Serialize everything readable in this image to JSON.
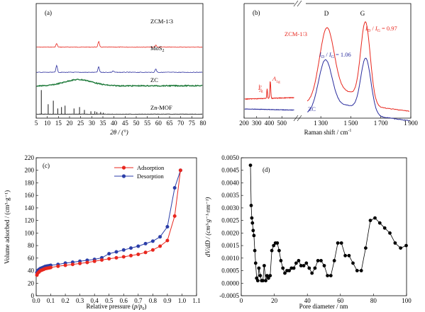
{
  "chart_data": [
    {
      "panel": "(a)",
      "type": "line",
      "xlabel": "2θ / (°)",
      "ylabel": "",
      "xlim": [
        5,
        80
      ],
      "xticks": [
        5,
        10,
        15,
        20,
        25,
        30,
        35,
        40,
        45,
        50,
        55,
        60,
        65,
        70,
        75,
        80
      ],
      "series": [
        {
          "name": "ZCM-1∶3",
          "color": "#e8271e",
          "peaks": [
            {
              "x": 14.2,
              "h": 5
            },
            {
              "x": 33.1,
              "h": 8
            },
            {
              "x": 58.8,
              "h": 3
            }
          ],
          "base": 0.38,
          "slope": 0.0,
          "noise": 0.8
        },
        {
          "name": "MoS",
          "sub": "2",
          "color": "#2b2e9e",
          "peaks": [
            {
              "x": 14.2,
              "h": 10
            },
            {
              "x": 33.1,
              "h": 8
            },
            {
              "x": 39.6,
              "h": 2
            },
            {
              "x": 58.8,
              "h": 5
            }
          ],
          "base": 0.6,
          "slope": 0.0,
          "noise": 0.8
        },
        {
          "name": "ZC",
          "color": "#1e7a3a",
          "broad": {
            "x": 24,
            "w": 9,
            "h": 9
          },
          "base": 0.72,
          "slope": 0.07,
          "noise": 1.4
        },
        {
          "name": "Zn-MOF",
          "color": "#000000",
          "sticks": [
            {
              "x": 7.3,
              "h": 34
            },
            {
              "x": 10.4,
              "h": 14
            },
            {
              "x": 12.7,
              "h": 19
            },
            {
              "x": 14.7,
              "h": 8
            },
            {
              "x": 16.4,
              "h": 10
            },
            {
              "x": 18.0,
              "h": 12
            },
            {
              "x": 22.0,
              "h": 8
            },
            {
              "x": 24.5,
              "h": 10
            },
            {
              "x": 26.7,
              "h": 6
            },
            {
              "x": 29.6,
              "h": 4
            },
            {
              "x": 31.4,
              "h": 4
            },
            {
              "x": 32.3,
              "h": 3
            },
            {
              "x": 34.0,
              "h": 3
            },
            {
              "x": 35.2,
              "h": 2
            }
          ],
          "base": 0.965,
          "slope": 0.0,
          "noise": 0.3
        }
      ]
    },
    {
      "panel": "(b)",
      "type": "line",
      "xlabel": "Raman shift / cm",
      "xlabel_sup": "-1",
      "xticks_left": [
        200,
        300,
        400,
        500
      ],
      "xticks_right": [
        1300,
        1500,
        1700,
        1900
      ],
      "xlim_left": [
        200,
        600
      ],
      "xlim_right": [
        1200,
        1900
      ],
      "peak_labels": [
        "D",
        "G"
      ],
      "series": [
        {
          "name": "ZCM-1∶3",
          "color": "#e8271e",
          "ratio_text": "= 0.97"
        },
        {
          "name": "ZC",
          "color": "#2b2e9e",
          "ratio_text": "= 1.06"
        }
      ],
      "mode_labels": [
        {
          "main": "E",
          "sub": "2g",
          "sup": "1"
        },
        {
          "main": "A",
          "sub": "1g",
          "sup": ""
        }
      ],
      "ratio_label": {
        "i": "I",
        "d": "D",
        "slash": " / ",
        "g": "G"
      }
    },
    {
      "panel": "(c)",
      "type": "line",
      "xlabel": "Relative pressure (",
      "xlabel_var": "p/p",
      "xlabel_sub": "0",
      "xlabel_end": ")",
      "ylabel": "Volume adsorbed / (cm³·g⁻¹)",
      "xlim": [
        0,
        1.1
      ],
      "ylim": [
        0,
        220
      ],
      "xticks": [
        0.0,
        0.1,
        0.2,
        0.3,
        0.4,
        0.5,
        0.6,
        0.7,
        0.8,
        0.9,
        1.0,
        1.1
      ],
      "yticks": [
        0,
        20,
        40,
        60,
        80,
        100,
        120,
        140,
        160,
        180,
        200,
        220
      ],
      "legend": "top-right",
      "series": [
        {
          "name": "Adsorption",
          "color": "#e8271e",
          "x": [
            0.005,
            0.01,
            0.02,
            0.03,
            0.04,
            0.05,
            0.06,
            0.07,
            0.08,
            0.09,
            0.1,
            0.15,
            0.2,
            0.25,
            0.3,
            0.35,
            0.4,
            0.45,
            0.5,
            0.55,
            0.6,
            0.65,
            0.7,
            0.75,
            0.8,
            0.85,
            0.9,
            0.95,
            0.99
          ],
          "y": [
            33,
            36,
            38,
            40,
            41,
            42,
            43,
            43.5,
            44,
            44.5,
            45,
            47,
            48.5,
            50,
            51.5,
            53,
            55,
            57,
            59,
            60.5,
            62,
            64,
            66,
            69,
            73,
            79,
            88,
            127,
            200
          ]
        },
        {
          "name": "Desorption",
          "color": "#2b3ea8",
          "x": [
            0.005,
            0.01,
            0.02,
            0.03,
            0.04,
            0.05,
            0.06,
            0.07,
            0.08,
            0.09,
            0.1,
            0.15,
            0.2,
            0.25,
            0.3,
            0.35,
            0.4,
            0.45,
            0.5,
            0.55,
            0.6,
            0.65,
            0.7,
            0.75,
            0.8,
            0.85,
            0.9,
            0.95,
            0.99
          ],
          "y": [
            37,
            40,
            42,
            43.5,
            44.5,
            45.5,
            46.5,
            47,
            47.5,
            48,
            48.5,
            50,
            52,
            53.5,
            55,
            56.5,
            58,
            60.5,
            67,
            70,
            73,
            76,
            79,
            83,
            87,
            94,
            110,
            172,
            200
          ]
        }
      ]
    },
    {
      "panel": "(d)",
      "type": "scatter",
      "xlabel": "Pore diameter / nm",
      "ylabel": "dV/dD / (cm³·g⁻¹·nm⁻¹)",
      "xlim": [
        0,
        100
      ],
      "ylim": [
        -0.0005,
        0.005
      ],
      "xticks": [
        0,
        20,
        40,
        60,
        80,
        100
      ],
      "yticks": [
        "-0.0005",
        "0.0000",
        "0.0005",
        "0.0010",
        "0.0015",
        "0.0020",
        "0.0025",
        "0.0030",
        "0.0035",
        "0.0040",
        "0.0045",
        "0.0050"
      ],
      "yticks_v": [
        -0.0005,
        0.0,
        0.0005,
        0.001,
        0.0015,
        0.002,
        0.0025,
        0.003,
        0.0035,
        0.004,
        0.0045,
        0.005
      ],
      "series": [
        {
          "name": "",
          "color": "#000000",
          "x": [
            5.6,
            6.0,
            6.4,
            6.8,
            7.2,
            7.7,
            8.2,
            8.7,
            9.3,
            10.0,
            10.7,
            11.5,
            12.3,
            13.1,
            13.9,
            14.8,
            15.6,
            16.5,
            17.5,
            18.5,
            19.6,
            20.7,
            21.8,
            22.9,
            24.0,
            25.2,
            26.4,
            27.7,
            29.0,
            30.4,
            31.8,
            33.2,
            34.7,
            36.2,
            37.8,
            39.4,
            41.1,
            42.8,
            44.6,
            46.4,
            48.3,
            50.2,
            52.2,
            54.2,
            56.3,
            58.4,
            60.6,
            62.9,
            65.2,
            67.6,
            70.1,
            72.6,
            75.3,
            78.1,
            80.9,
            83.8,
            86.8,
            89.9,
            93.1,
            96.4,
            99.8
          ],
          "y": [
            0.0047,
            0.0031,
            0.0026,
            0.0024,
            0.0021,
            0.0019,
            0.0013,
            0.0008,
            0.0002,
            0.0001,
            0.0006,
            0.0003,
            0.0001,
            0.0001,
            0.0007,
            0.0001,
            0.0003,
            0.0002,
            0.0003,
            0.0013,
            0.0015,
            0.0016,
            0.0016,
            0.0013,
            0.0009,
            0.0006,
            0.0004,
            0.0005,
            0.0005,
            0.0006,
            0.0006,
            0.0008,
            0.0009,
            0.0007,
            0.0007,
            0.0008,
            0.0006,
            0.0004,
            0.0006,
            0.0009,
            0.0009,
            0.0007,
            0.0003,
            0.0003,
            0.0009,
            0.0016,
            0.0016,
            0.0011,
            0.0011,
            0.0008,
            0.0005,
            0.0005,
            0.0014,
            0.0025,
            0.0026,
            0.0024,
            0.0022,
            0.002,
            0.0016,
            0.0014,
            0.0015
          ]
        }
      ]
    }
  ]
}
